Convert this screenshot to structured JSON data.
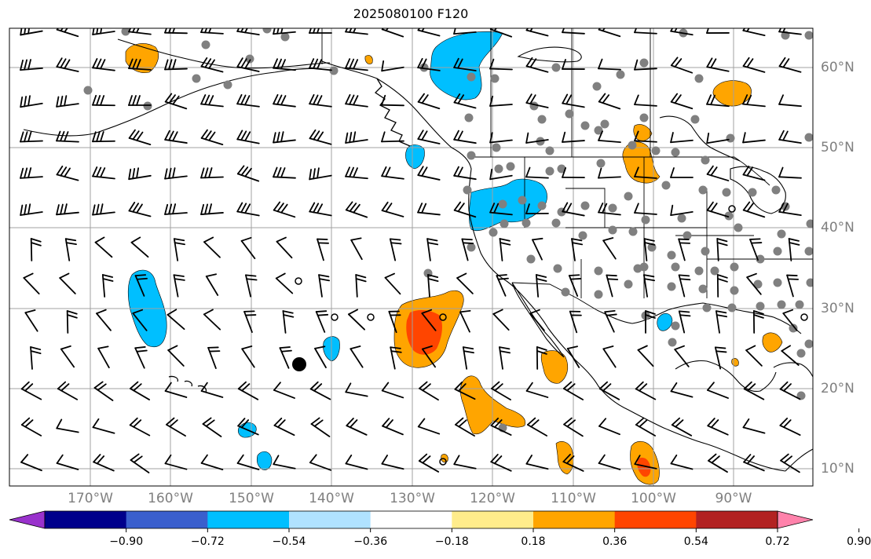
{
  "title": "2025080100 F120",
  "lon_labels": [
    "170°W",
    "160°W",
    "150°W",
    "140°W",
    "130°W",
    "120°W",
    "110°W",
    "100°W",
    "90°W"
  ],
  "lat_labels": [
    "60°N",
    "50°N",
    "40°N",
    "30°N",
    "20°N",
    "10°N"
  ],
  "colorbar": {
    "ticks": [
      "−0.90",
      "−0.72",
      "−0.54",
      "−0.36",
      "−0.18",
      "0.18",
      "0.36",
      "0.54",
      "0.72",
      "0.90"
    ],
    "colors": [
      "#9932cc",
      "#00008b",
      "#3a5fcd",
      "#00bfff",
      "#b0e2ff",
      "#ffffff",
      "#ffec8b",
      "#ffa500",
      "#ff4500",
      "#b22222",
      "#ff82ab"
    ]
  },
  "colors": {
    "grid": "#a0a0a0",
    "coast": "#000000",
    "station": "#808080",
    "positive_fill": "#ffa500",
    "strong_positive_fill": "#ff4500",
    "negative_fill": "#00bfff"
  }
}
